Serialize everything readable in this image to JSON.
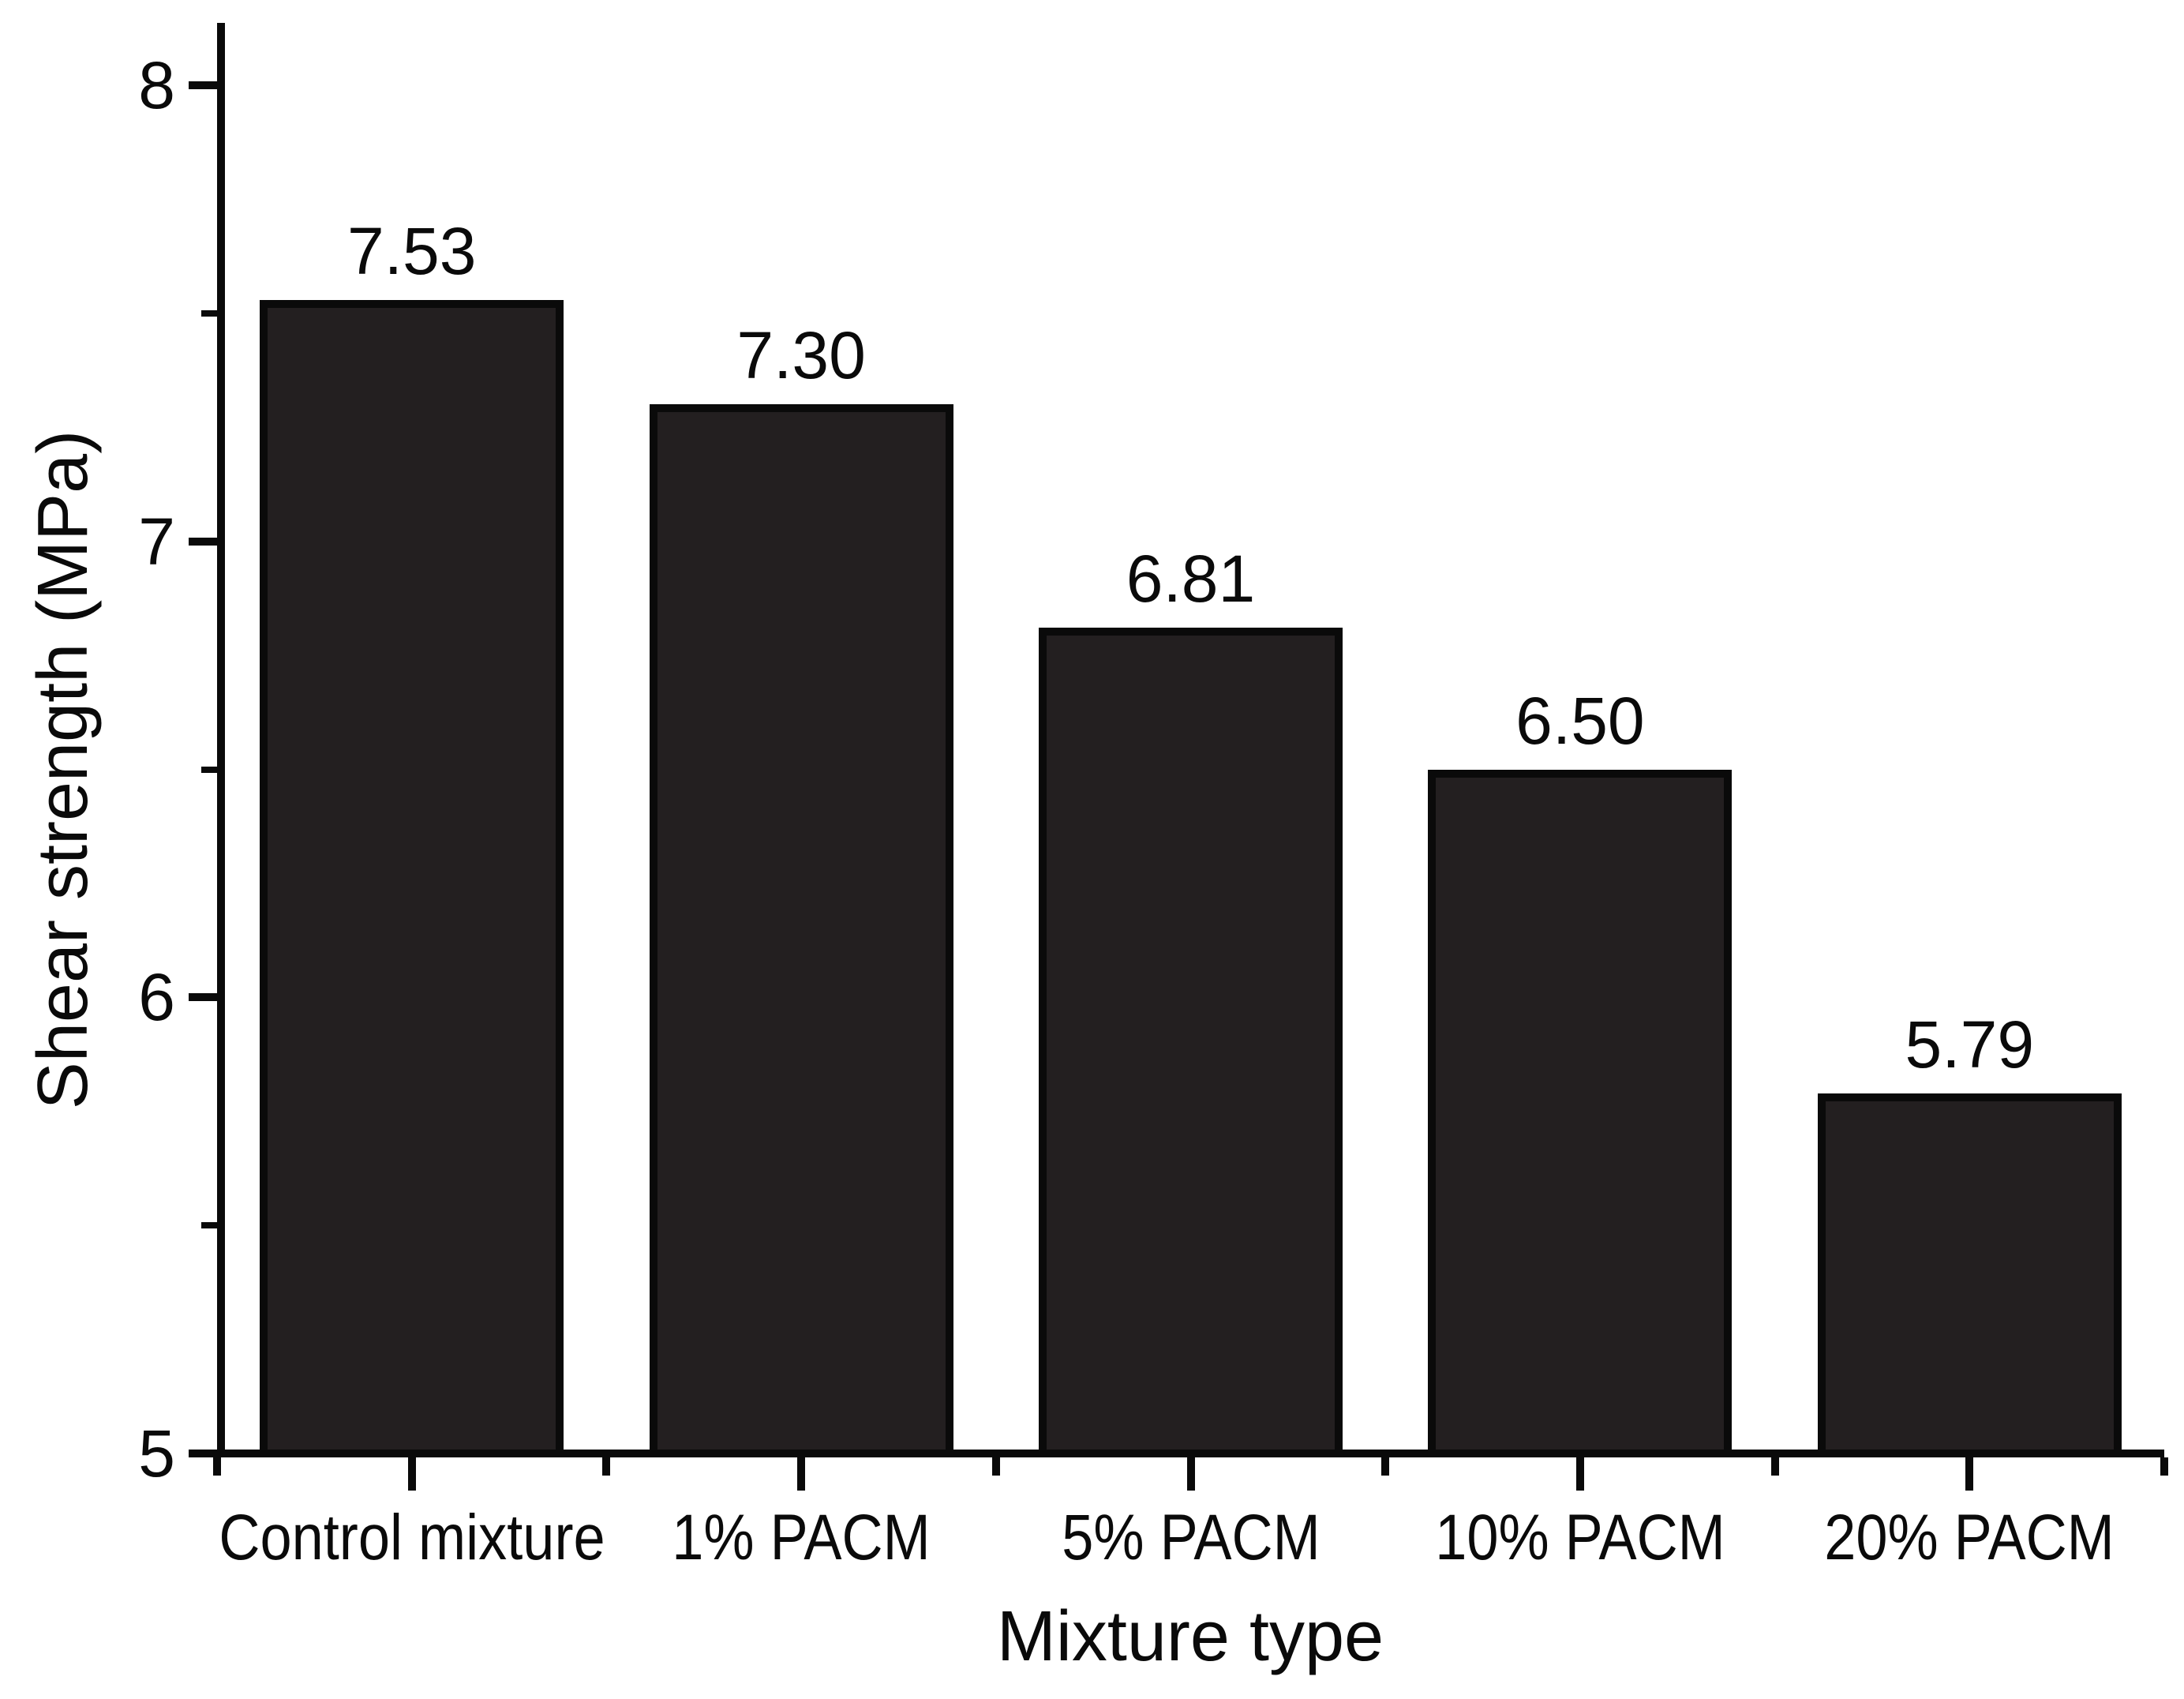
{
  "figure": {
    "background": "#ffffff"
  },
  "chart_data": {
    "type": "bar",
    "title": "",
    "categories": [
      "Control mixture",
      "1% PACM",
      "5% PACM",
      "10% PACM",
      "20% PACM"
    ],
    "values": [
      7.53,
      7.3,
      6.81,
      6.5,
      5.79
    ],
    "value_labels": [
      "7.53",
      "7.30",
      "6.81",
      "6.50",
      "5.79"
    ],
    "xlabel": "Mixture type",
    "ylabel": "Shear strength (MPa)",
    "ylim": [
      5,
      8
    ],
    "yticks_major": [
      5,
      6,
      7,
      8
    ],
    "ytick_labels": [
      "5",
      "6",
      "7",
      "8"
    ],
    "yticks_minor": [
      5.5,
      6.5,
      7.5
    ],
    "grid": false,
    "legend": null,
    "bar_color": "#231f20",
    "bar_edge_color": "#0a0a0a",
    "axis_color": "#0a0a0a",
    "text_color": "#0a0a0a"
  }
}
